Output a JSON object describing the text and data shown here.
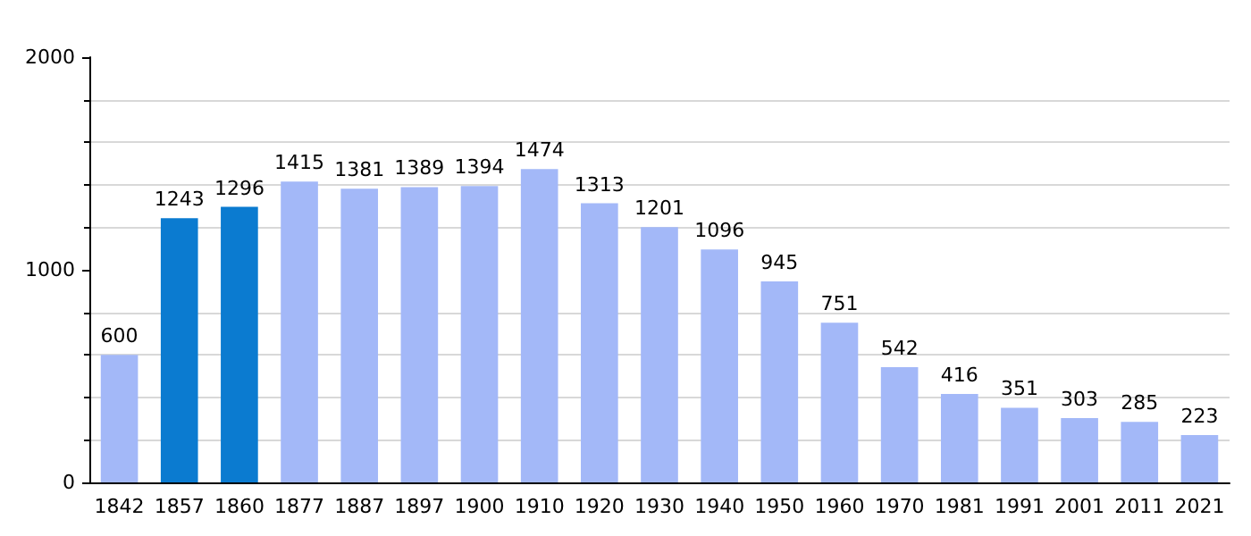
{
  "chart_data": {
    "type": "bar",
    "categories": [
      "1842",
      "1857",
      "1860",
      "1877",
      "1887",
      "1897",
      "1900",
      "1910",
      "1920",
      "1930",
      "1940",
      "1950",
      "1960",
      "1970",
      "1981",
      "1991",
      "2001",
      "2011",
      "2021"
    ],
    "values": [
      600,
      1243,
      1296,
      1415,
      1381,
      1389,
      1394,
      1474,
      1313,
      1201,
      1096,
      945,
      751,
      542,
      416,
      351,
      303,
      285,
      223
    ],
    "colors": [
      "#a3b8f8",
      "#0b7bd0",
      "#0b7bd0",
      "#a3b8f8",
      "#a3b8f8",
      "#a3b8f8",
      "#a3b8f8",
      "#a3b8f8",
      "#a3b8f8",
      "#a3b8f8",
      "#a3b8f8",
      "#a3b8f8",
      "#a3b8f8",
      "#a3b8f8",
      "#a3b8f8",
      "#a3b8f8",
      "#a3b8f8",
      "#a3b8f8",
      "#a3b8f8"
    ],
    "ylim": [
      0,
      2000
    ],
    "yticks": [
      0,
      {
        "value": 200,
        "label": null
      },
      {
        "value": 400,
        "label": null
      },
      {
        "value": 600,
        "label": null
      },
      {
        "value": 800,
        "label": null
      },
      1000,
      {
        "value": 1200,
        "label": null
      },
      {
        "value": 1400,
        "label": null
      },
      {
        "value": 1600,
        "label": null
      },
      {
        "value": 1800,
        "label": null
      },
      2000
    ],
    "grid": true,
    "data_labels": true
  }
}
